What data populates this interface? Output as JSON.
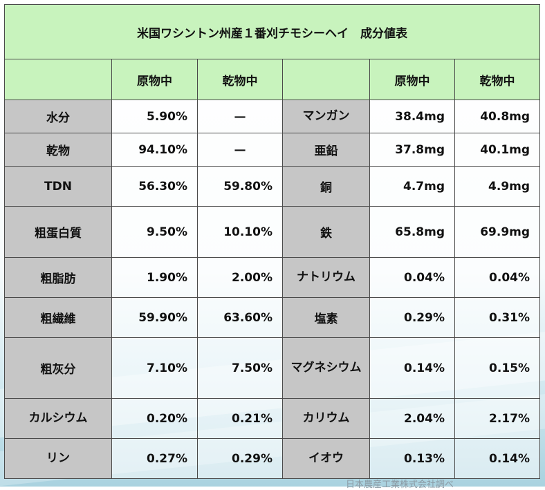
{
  "title": "米国ワシントン州産１番刈チモシーヘイ　成分値表",
  "headers": [
    "",
    "原物中",
    "乾物中",
    "",
    "原物中",
    "乾物中"
  ],
  "rows": [
    {
      "l1": "水分",
      "v1": "5.90%",
      "d1": "—",
      "l2": "マンガン",
      "v2": "38.4mg",
      "d2": "40.8mg"
    },
    {
      "l1": "乾物",
      "v1": "94.10%",
      "d1": "—",
      "l2": "亜鉛",
      "v2": "37.8mg",
      "d2": "40.1mg"
    },
    {
      "l1": "TDN",
      "v1": "56.30%",
      "d1": "59.80%",
      "l2": "銅",
      "v2": "4.7mg",
      "d2": "4.9mg"
    },
    {
      "l1": "粗蛋白質",
      "v1": "9.50%",
      "d1": "10.10%",
      "l2": "鉄",
      "v2": "65.8mg",
      "d2": "69.9mg"
    },
    {
      "l1": "粗脂肪",
      "v1": "1.90%",
      "d1": "2.00%",
      "l2": "ナトリウム",
      "v2": "0.04%",
      "d2": "0.04%"
    },
    {
      "l1": "粗繊維",
      "v1": "59.90%",
      "d1": "63.60%",
      "l2": "塩素",
      "v2": "0.29%",
      "d2": "0.31%"
    },
    {
      "l1": "粗灰分",
      "v1": "7.10%",
      "d1": "7.50%",
      "l2": "マグネシウム",
      "v2": "0.14%",
      "d2": "0.15%"
    },
    {
      "l1": "カルシウム",
      "v1": "0.20%",
      "d1": "0.21%",
      "l2": "カリウム",
      "v2": "2.04%",
      "d2": "2.17%"
    },
    {
      "l1": "リン",
      "v1": "0.27%",
      "d1": "0.29%",
      "l2": "イオウ",
      "v2": "0.13%",
      "d2": "0.14%"
    }
  ],
  "source": "日本農産工業株式会社調べ"
}
